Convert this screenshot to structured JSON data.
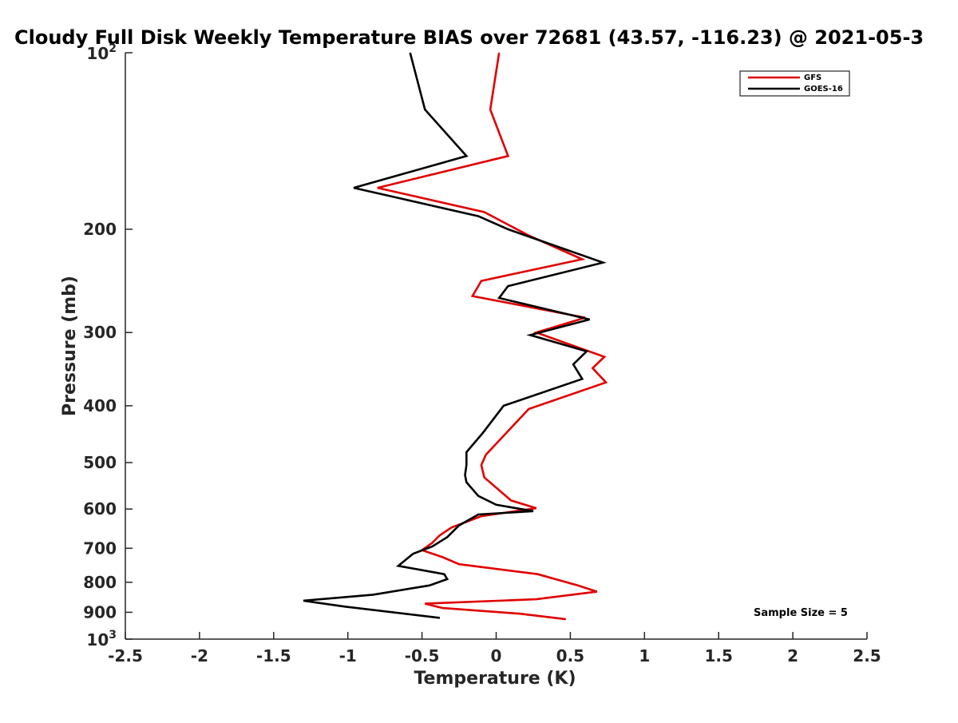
{
  "chart_data": {
    "type": "line",
    "title": "Cloudy Full Disk Weekly Temperature BIAS over 72681 (43.57, -116.23) @ 2021-05-3",
    "xlabel": "Temperature (K)",
    "ylabel": "Pressure (mb)",
    "xlim": [
      -2.5,
      2.5
    ],
    "ylim": [
      100,
      1000
    ],
    "y_scale": "log",
    "y_reversed": true,
    "grid": false,
    "legend_position": "top-right",
    "x_ticks": [
      {
        "value": -2.5,
        "label": "-2.5"
      },
      {
        "value": -2,
        "label": "-2"
      },
      {
        "value": -1.5,
        "label": "-1.5"
      },
      {
        "value": -1,
        "label": "-1"
      },
      {
        "value": -0.5,
        "label": "-0.5"
      },
      {
        "value": 0,
        "label": "0"
      },
      {
        "value": 0.5,
        "label": "0.5"
      },
      {
        "value": 1,
        "label": "1"
      },
      {
        "value": 1.5,
        "label": "1.5"
      },
      {
        "value": 2,
        "label": "2"
      },
      {
        "value": 2.5,
        "label": "2.5"
      }
    ],
    "y_ticks": [
      {
        "value": 100,
        "base": "10",
        "exp": "2"
      },
      {
        "value": 200,
        "label": "200"
      },
      {
        "value": 300,
        "label": "300"
      },
      {
        "value": 400,
        "label": "400"
      },
      {
        "value": 500,
        "label": "500"
      },
      {
        "value": 600,
        "label": "600"
      },
      {
        "value": 700,
        "label": "700"
      },
      {
        "value": 800,
        "label": "800"
      },
      {
        "value": 900,
        "label": "900"
      },
      {
        "value": 1000,
        "base": "10",
        "exp": "3"
      }
    ],
    "series": [
      {
        "name": "GFS",
        "color": "#e00000",
        "points": [
          [
            0.02,
            100
          ],
          [
            -0.04,
            125
          ],
          [
            0.08,
            150
          ],
          [
            -0.8,
            170
          ],
          [
            -0.08,
            187
          ],
          [
            0.22,
            205
          ],
          [
            0.58,
            225
          ],
          [
            -0.1,
            245
          ],
          [
            -0.16,
            260
          ],
          [
            0.6,
            283
          ],
          [
            0.27,
            300
          ],
          [
            0.73,
            330
          ],
          [
            0.65,
            345
          ],
          [
            0.74,
            365
          ],
          [
            0.22,
            405
          ],
          [
            -0.07,
            485
          ],
          [
            -0.1,
            505
          ],
          [
            -0.08,
            530
          ],
          [
            0.1,
            580
          ],
          [
            0.27,
            598
          ],
          [
            -0.1,
            617
          ],
          [
            -0.3,
            645
          ],
          [
            -0.38,
            665
          ],
          [
            -0.43,
            685
          ],
          [
            -0.5,
            705
          ],
          [
            -0.36,
            725
          ],
          [
            -0.25,
            745
          ],
          [
            0.28,
            775
          ],
          [
            0.55,
            810
          ],
          [
            0.68,
            830
          ],
          [
            0.27,
            855
          ],
          [
            -0.48,
            870
          ],
          [
            -0.36,
            885
          ],
          [
            0.16,
            905
          ],
          [
            0.47,
            925
          ]
        ]
      },
      {
        "name": "GOES-16",
        "color": "#000000",
        "points": [
          [
            -0.58,
            100
          ],
          [
            -0.48,
            125
          ],
          [
            -0.2,
            150
          ],
          [
            -0.96,
            170
          ],
          [
            -0.12,
            190
          ],
          [
            0.08,
            200
          ],
          [
            0.72,
            228
          ],
          [
            0.08,
            250
          ],
          [
            0.02,
            262
          ],
          [
            0.63,
            285
          ],
          [
            0.23,
            303
          ],
          [
            0.61,
            323
          ],
          [
            0.52,
            340
          ],
          [
            0.58,
            360
          ],
          [
            0.05,
            400
          ],
          [
            -0.09,
            445
          ],
          [
            -0.2,
            480
          ],
          [
            -0.2,
            505
          ],
          [
            -0.21,
            525
          ],
          [
            -0.2,
            540
          ],
          [
            -0.12,
            570
          ],
          [
            0.0,
            590
          ],
          [
            0.25,
            605
          ],
          [
            -0.12,
            613
          ],
          [
            -0.25,
            640
          ],
          [
            -0.33,
            670
          ],
          [
            -0.43,
            695
          ],
          [
            -0.56,
            715
          ],
          [
            -0.66,
            750
          ],
          [
            -0.35,
            775
          ],
          [
            -0.33,
            790
          ],
          [
            -0.45,
            810
          ],
          [
            -0.83,
            840
          ],
          [
            -1.3,
            860
          ],
          [
            -1.02,
            880
          ],
          [
            -0.38,
            920
          ]
        ]
      }
    ],
    "annotation": "Sample Size = 5"
  }
}
